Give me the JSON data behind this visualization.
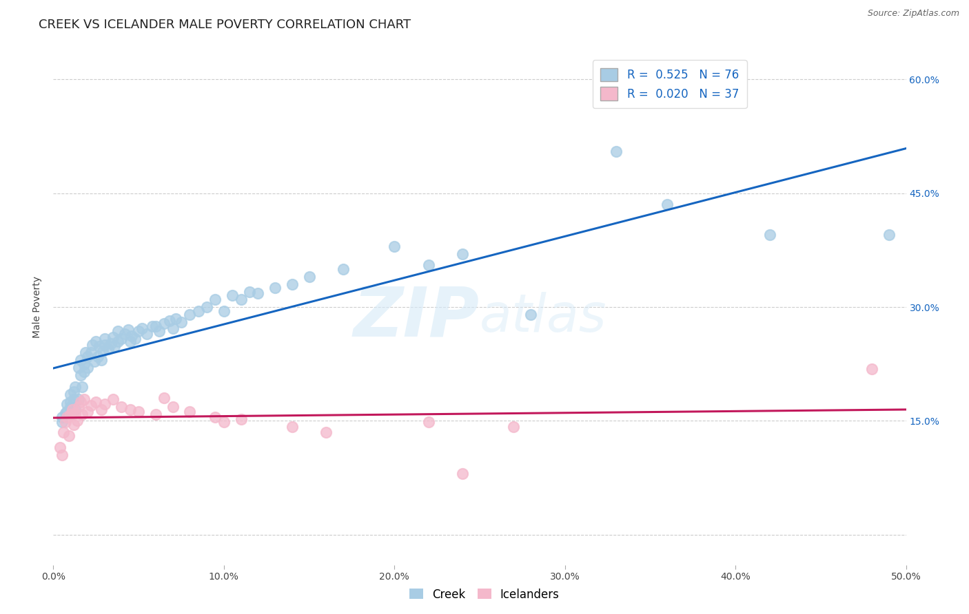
{
  "title": "CREEK VS ICELANDER MALE POVERTY CORRELATION CHART",
  "source": "Source: ZipAtlas.com",
  "ylabel": "Male Poverty",
  "xlim": [
    0.0,
    0.5
  ],
  "ylim": [
    -0.04,
    0.64
  ],
  "creek_color": "#a8cce4",
  "icelander_color": "#f4b8cb",
  "creek_R": 0.525,
  "creek_N": 76,
  "icelander_R": 0.02,
  "icelander_N": 37,
  "creek_scatter_x": [
    0.005,
    0.005,
    0.007,
    0.008,
    0.008,
    0.01,
    0.01,
    0.01,
    0.012,
    0.012,
    0.013,
    0.013,
    0.015,
    0.015,
    0.016,
    0.016,
    0.017,
    0.018,
    0.018,
    0.019,
    0.02,
    0.02,
    0.022,
    0.023,
    0.024,
    0.025,
    0.026,
    0.027,
    0.028,
    0.029,
    0.03,
    0.03,
    0.032,
    0.034,
    0.035,
    0.036,
    0.038,
    0.038,
    0.04,
    0.042,
    0.044,
    0.045,
    0.046,
    0.048,
    0.05,
    0.052,
    0.055,
    0.058,
    0.06,
    0.062,
    0.065,
    0.068,
    0.07,
    0.072,
    0.075,
    0.08,
    0.085,
    0.09,
    0.095,
    0.1,
    0.105,
    0.11,
    0.115,
    0.12,
    0.13,
    0.14,
    0.15,
    0.17,
    0.2,
    0.22,
    0.24,
    0.28,
    0.33,
    0.36,
    0.42,
    0.49
  ],
  "creek_scatter_y": [
    0.155,
    0.148,
    0.16,
    0.172,
    0.162,
    0.168,
    0.175,
    0.185,
    0.178,
    0.188,
    0.165,
    0.195,
    0.178,
    0.22,
    0.21,
    0.23,
    0.195,
    0.215,
    0.225,
    0.24,
    0.22,
    0.235,
    0.24,
    0.25,
    0.228,
    0.255,
    0.235,
    0.248,
    0.23,
    0.242,
    0.25,
    0.258,
    0.245,
    0.252,
    0.26,
    0.248,
    0.255,
    0.268,
    0.258,
    0.265,
    0.27,
    0.255,
    0.262,
    0.258,
    0.268,
    0.272,
    0.265,
    0.275,
    0.275,
    0.268,
    0.278,
    0.282,
    0.272,
    0.285,
    0.28,
    0.29,
    0.295,
    0.3,
    0.31,
    0.295,
    0.315,
    0.31,
    0.32,
    0.318,
    0.325,
    0.33,
    0.34,
    0.35,
    0.38,
    0.355,
    0.37,
    0.29,
    0.505,
    0.435,
    0.395,
    0.395
  ],
  "icelander_scatter_x": [
    0.004,
    0.005,
    0.006,
    0.007,
    0.008,
    0.009,
    0.01,
    0.011,
    0.012,
    0.013,
    0.014,
    0.015,
    0.016,
    0.017,
    0.018,
    0.02,
    0.022,
    0.025,
    0.028,
    0.03,
    0.035,
    0.04,
    0.045,
    0.05,
    0.06,
    0.065,
    0.07,
    0.08,
    0.095,
    0.1,
    0.11,
    0.14,
    0.16,
    0.22,
    0.24,
    0.27,
    0.48
  ],
  "icelander_scatter_y": [
    0.115,
    0.105,
    0.135,
    0.148,
    0.155,
    0.13,
    0.158,
    0.165,
    0.145,
    0.16,
    0.15,
    0.168,
    0.175,
    0.158,
    0.178,
    0.162,
    0.17,
    0.175,
    0.165,
    0.172,
    0.178,
    0.168,
    0.165,
    0.162,
    0.158,
    0.18,
    0.168,
    0.162,
    0.155,
    0.148,
    0.152,
    0.142,
    0.135,
    0.148,
    0.08,
    0.142,
    0.218
  ],
  "creek_line_color": "#1565c0",
  "icelander_line_color": "#c2185b",
  "background_color": "#ffffff",
  "grid_color": "#cccccc",
  "watermark_color": "#d6eaf8",
  "title_fontsize": 13,
  "axis_label_fontsize": 10,
  "tick_fontsize": 10,
  "legend_fontsize": 12,
  "source_fontsize": 9,
  "right_tick_color": "#1565c0"
}
